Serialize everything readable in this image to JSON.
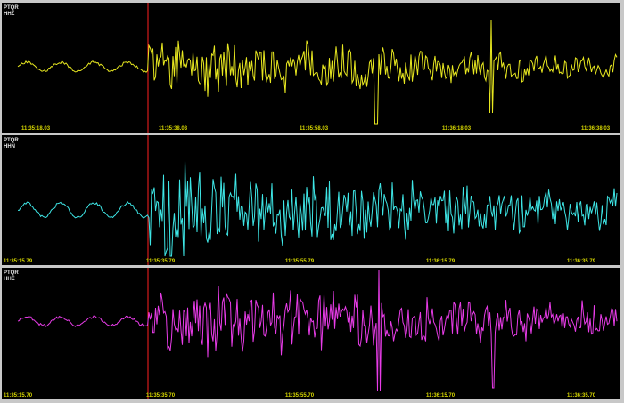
{
  "colors": {
    "background": "#000000",
    "frame": "#c8c8c8",
    "pick_line": "#ff2020",
    "time_labels": "#d8d800",
    "channel_labels": "#e6e6e6"
  },
  "panels": [
    {
      "station": "PTQR",
      "channel": "HHZ",
      "trace_color": "#e8e820",
      "time_labels": [
        "11:35:18.03",
        "11:35:38.03",
        "11:35:58.03",
        "11:36:18.03",
        "11:36:38.03"
      ]
    },
    {
      "station": "PTQR",
      "channel": "HHN",
      "trace_color": "#3ee6e6",
      "time_labels": [
        "11:35:15.79",
        "11:35:35.79",
        "11:35:55.79",
        "11:36:15.79",
        "11:36:35.79"
      ]
    },
    {
      "station": "PTQR",
      "channel": "HHE",
      "trace_color": "#e83ce8",
      "time_labels": [
        "11:35:15.70",
        "11:35:35.70",
        "11:35:55.70",
        "11:36:15.70",
        "11:36:35.70"
      ]
    }
  ]
}
